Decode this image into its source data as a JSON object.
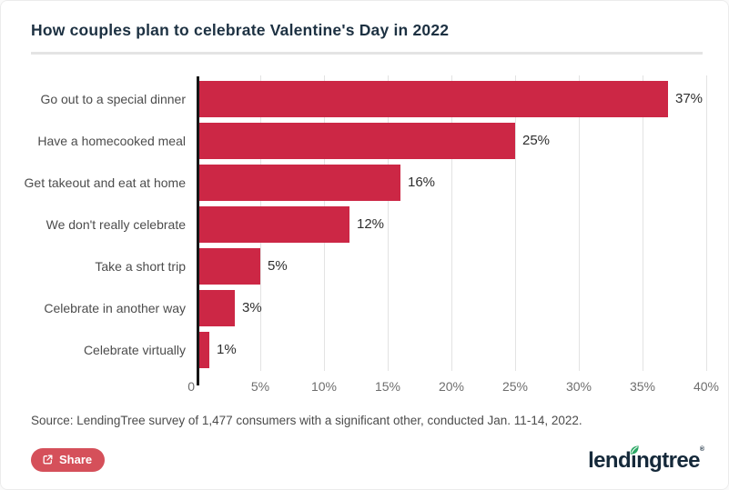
{
  "header": {
    "title": "How couples plan to celebrate Valentine's Day in 2022"
  },
  "chart_data": {
    "type": "bar",
    "orientation": "horizontal",
    "title": "How couples plan to celebrate Valentine's Day in 2022",
    "categories": [
      "Go out to a special dinner",
      "Have a homecooked meal",
      "Get takeout and eat at home",
      "We don't really celebrate",
      "Take a short trip",
      "Celebrate in another way",
      "Celebrate virtually"
    ],
    "values": [
      37,
      25,
      16,
      12,
      5,
      3,
      1
    ],
    "value_labels": [
      "37%",
      "25%",
      "16%",
      "12%",
      "5%",
      "3%",
      "1%"
    ],
    "x_ticks": [
      "0",
      "5%",
      "10%",
      "15%",
      "20%",
      "25%",
      "30%",
      "35%",
      "40%"
    ],
    "xlim": [
      0,
      40
    ],
    "grid": true,
    "legend": "none",
    "bar_color": "#cc2745"
  },
  "footer": {
    "source": "Source: LendingTree survey of 1,477 consumers with a significant other, conducted Jan. 11-14, 2022.",
    "share_label": "Share",
    "logo": {
      "text": "lendingtree",
      "part_before_leaf": "lend",
      "part_after_leaf": "ngtree",
      "trademark": "®"
    }
  },
  "colors": {
    "bar": "#cc2745",
    "title": "#1d3142",
    "share_button": "#d5505a",
    "leaf_green": "#2aa764",
    "logo_navy": "#15293a",
    "gridline": "#e3e3e3",
    "axis": "#161616"
  }
}
